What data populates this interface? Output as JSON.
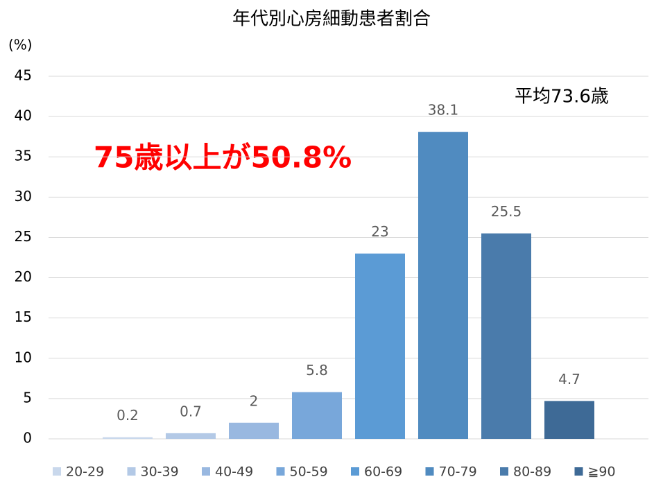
{
  "chart_data": {
    "type": "bar",
    "title": "年代別心房細動患者割合",
    "y_axis_label": "(%)",
    "categories": [
      null
    ],
    "series": [
      {
        "name": "20-29",
        "color": "#c9d8ec",
        "values": [
          0.2
        ]
      },
      {
        "name": "30-39",
        "color": "#b3c9e6",
        "values": [
          0.7
        ]
      },
      {
        "name": "40-49",
        "color": "#99b8e0",
        "values": [
          2
        ]
      },
      {
        "name": "50-59",
        "color": "#78a7da",
        "values": [
          5.8
        ]
      },
      {
        "name": "60-69",
        "color": "#5b9bd5",
        "values": [
          23
        ]
      },
      {
        "name": "70-79",
        "color": "#508bc0",
        "values": [
          38.1
        ]
      },
      {
        "name": "80-89",
        "color": "#4a7bab",
        "values": [
          25.5
        ]
      },
      {
        "name": "≧90",
        "color": "#3e6a96",
        "values": [
          4.7
        ]
      }
    ],
    "ylim": [
      0,
      45
    ],
    "yticks": [
      0,
      5,
      10,
      15,
      20,
      25,
      30,
      35,
      40,
      45
    ],
    "grid": true,
    "annotations": [
      "75歳以上が50.8%",
      "平均73.6歳"
    ]
  }
}
